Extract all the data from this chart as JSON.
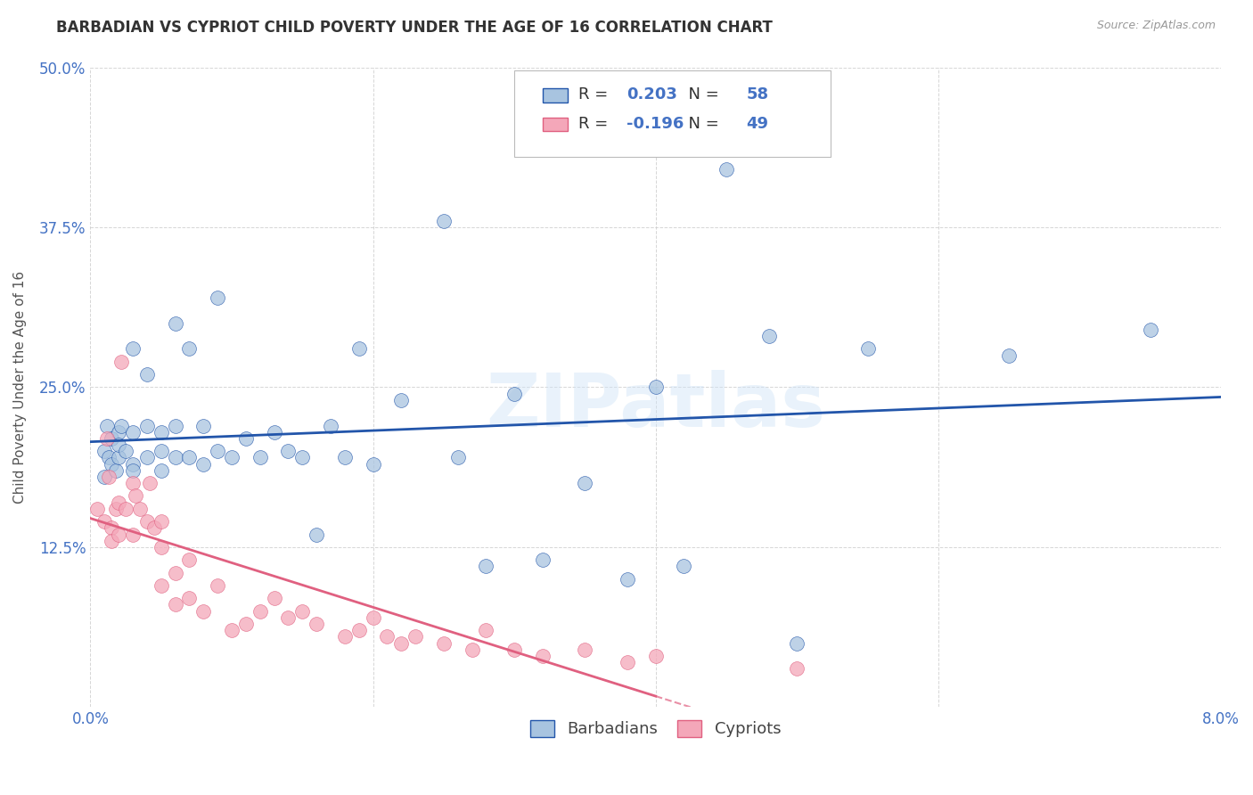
{
  "title": "BARBADIAN VS CYPRIOT CHILD POVERTY UNDER THE AGE OF 16 CORRELATION CHART",
  "source": "Source: ZipAtlas.com",
  "ylabel": "Child Poverty Under the Age of 16",
  "xlim": [
    0.0,
    0.08
  ],
  "ylim": [
    0.0,
    0.5
  ],
  "xticks": [
    0.0,
    0.02,
    0.04,
    0.06,
    0.08
  ],
  "xticklabels": [
    "0.0%",
    "",
    "",
    "",
    "8.0%"
  ],
  "yticks": [
    0.0,
    0.125,
    0.25,
    0.375,
    0.5
  ],
  "yticklabels": [
    "",
    "12.5%",
    "25.0%",
    "37.5%",
    "50.0%"
  ],
  "grid_color": "#cccccc",
  "background_color": "#ffffff",
  "barbadian_color": "#a8c4e0",
  "cypriot_color": "#f4a7b9",
  "barbadian_line_color": "#2255aa",
  "cypriot_line_color": "#e06080",
  "legend_R_barbadian": "0.203",
  "legend_N_barbadian": "58",
  "legend_R_cypriot": "-0.196",
  "legend_N_cypriot": "49",
  "legend_label_barbadian": "Barbadians",
  "legend_label_cypriot": "Cypriots",
  "watermark": "ZIPatlas",
  "title_fontsize": 12,
  "axis_label_fontsize": 11,
  "tick_fontsize": 12,
  "barbadian_x": [
    0.001,
    0.001,
    0.0012,
    0.0013,
    0.0015,
    0.0015,
    0.0018,
    0.002,
    0.002,
    0.002,
    0.0022,
    0.0025,
    0.003,
    0.003,
    0.003,
    0.003,
    0.004,
    0.004,
    0.004,
    0.005,
    0.005,
    0.005,
    0.006,
    0.006,
    0.006,
    0.007,
    0.007,
    0.008,
    0.008,
    0.009,
    0.009,
    0.01,
    0.011,
    0.012,
    0.013,
    0.014,
    0.015,
    0.016,
    0.017,
    0.018,
    0.019,
    0.02,
    0.022,
    0.025,
    0.026,
    0.028,
    0.03,
    0.032,
    0.035,
    0.038,
    0.04,
    0.042,
    0.045,
    0.048,
    0.05,
    0.055,
    0.065,
    0.075
  ],
  "barbadian_y": [
    0.2,
    0.18,
    0.22,
    0.195,
    0.21,
    0.19,
    0.185,
    0.195,
    0.215,
    0.205,
    0.22,
    0.2,
    0.19,
    0.215,
    0.28,
    0.185,
    0.22,
    0.195,
    0.26,
    0.2,
    0.215,
    0.185,
    0.195,
    0.22,
    0.3,
    0.195,
    0.28,
    0.19,
    0.22,
    0.32,
    0.2,
    0.195,
    0.21,
    0.195,
    0.215,
    0.2,
    0.195,
    0.135,
    0.22,
    0.195,
    0.28,
    0.19,
    0.24,
    0.38,
    0.195,
    0.11,
    0.245,
    0.115,
    0.175,
    0.1,
    0.25,
    0.11,
    0.42,
    0.29,
    0.05,
    0.28,
    0.275,
    0.295
  ],
  "cypriot_x": [
    0.0005,
    0.001,
    0.0012,
    0.0013,
    0.0015,
    0.0015,
    0.0018,
    0.002,
    0.002,
    0.0022,
    0.0025,
    0.003,
    0.003,
    0.0032,
    0.0035,
    0.004,
    0.0042,
    0.0045,
    0.005,
    0.005,
    0.005,
    0.006,
    0.006,
    0.007,
    0.007,
    0.008,
    0.009,
    0.01,
    0.011,
    0.012,
    0.013,
    0.014,
    0.015,
    0.016,
    0.018,
    0.019,
    0.02,
    0.021,
    0.022,
    0.023,
    0.025,
    0.027,
    0.028,
    0.03,
    0.032,
    0.035,
    0.038,
    0.04,
    0.05
  ],
  "cypriot_y": [
    0.155,
    0.145,
    0.21,
    0.18,
    0.14,
    0.13,
    0.155,
    0.135,
    0.16,
    0.27,
    0.155,
    0.135,
    0.175,
    0.165,
    0.155,
    0.145,
    0.175,
    0.14,
    0.125,
    0.145,
    0.095,
    0.08,
    0.105,
    0.115,
    0.085,
    0.075,
    0.095,
    0.06,
    0.065,
    0.075,
    0.085,
    0.07,
    0.075,
    0.065,
    0.055,
    0.06,
    0.07,
    0.055,
    0.05,
    0.055,
    0.05,
    0.045,
    0.06,
    0.045,
    0.04,
    0.045,
    0.035,
    0.04,
    0.03
  ]
}
